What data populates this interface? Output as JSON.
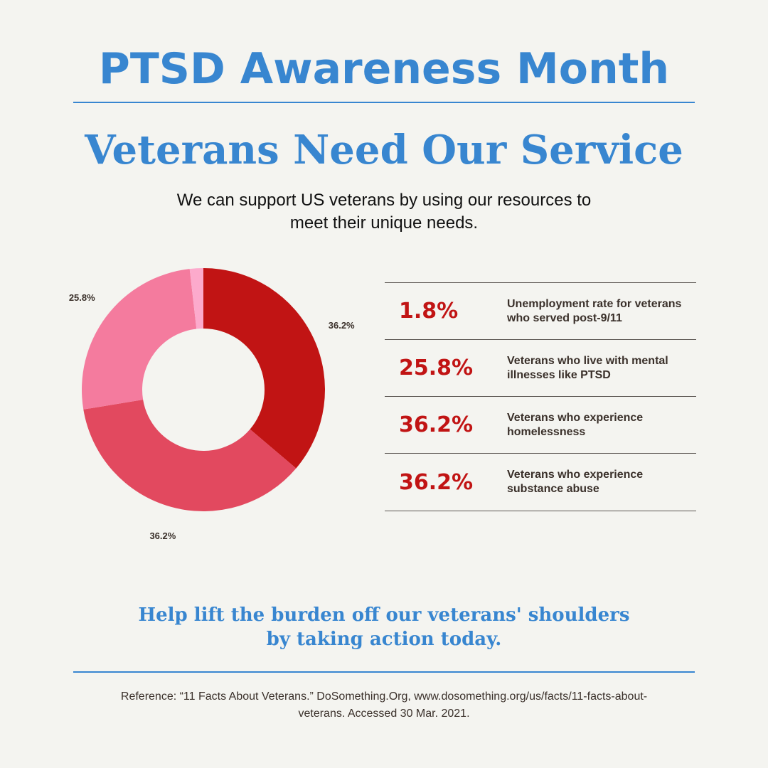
{
  "header": {
    "title": "PTSD Awareness Month",
    "subtitle": "Veterans Need Our Service",
    "intro": "We can support US veterans by using our resources to meet their unique needs."
  },
  "chart_data": {
    "type": "pie",
    "donut": true,
    "slices": [
      {
        "label": "36.2%",
        "value": 36.2,
        "color": "#c11414"
      },
      {
        "label": "36.2%",
        "value": 36.2,
        "color": "#e2495f"
      },
      {
        "label": "25.8%",
        "value": 25.8,
        "color": "#f47b9e"
      },
      {
        "label": "1.8%",
        "value": 1.8,
        "color": "#fcaacc"
      }
    ]
  },
  "stats": [
    {
      "value": "1.8%",
      "description": "Unemployment rate for veterans who served post-9/11"
    },
    {
      "value": "25.8%",
      "description": "Veterans who live with mental illnesses like PTSD"
    },
    {
      "value": "36.2%",
      "description": "Veterans who experience homelessness"
    },
    {
      "value": "36.2%",
      "description": "Veterans who experience substance abuse"
    }
  ],
  "cta": "Help lift the burden off our veterans' shoulders by taking action today.",
  "reference": "Reference: “11 Facts About Veterans.” DoSomething.Org, www.dosomething.org/us/facts/11-facts-about-veterans. Accessed 30 Mar. 2021.",
  "colors": {
    "accent": "#3886d0",
    "stat": "#c11414",
    "background": "#f4f4f0"
  }
}
